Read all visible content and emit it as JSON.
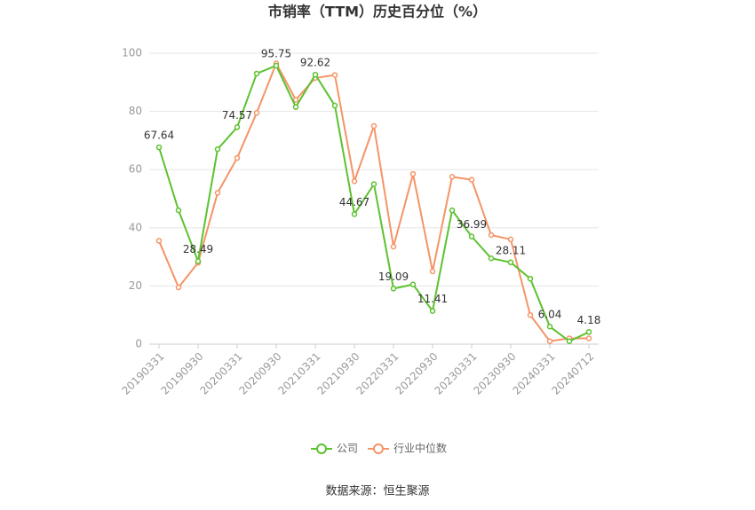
{
  "chart_data": {
    "type": "line",
    "title": "市销率（TTM）历史百分位（%）",
    "source": "数据来源：恒生聚源",
    "categories": [
      "20190331",
      null,
      "20190930",
      null,
      "20200331",
      null,
      "20200930",
      null,
      "20210331",
      null,
      "20210930",
      null,
      "20220331",
      null,
      "20220930",
      null,
      "20230331",
      null,
      "20230930",
      null,
      "20240331",
      null,
      "20240712"
    ],
    "series": [
      {
        "name": "公司",
        "color": "#5cc22f",
        "values": [
          67.64,
          46,
          28.49,
          67,
          74.57,
          93,
          95.75,
          81.5,
          92.62,
          82,
          44.67,
          55,
          19.09,
          20.5,
          11.41,
          46,
          36.99,
          29.5,
          28.11,
          22.5,
          6.04,
          1,
          4.18
        ],
        "value_labels": [
          "67.64",
          null,
          "28.49",
          null,
          "74.57",
          null,
          "95.75",
          null,
          "92.62",
          null,
          "44.67",
          null,
          "19.09",
          null,
          "11.41",
          null,
          "36.99",
          null,
          "28.11",
          null,
          "6.04",
          null,
          "4.18"
        ]
      },
      {
        "name": "行业中位数",
        "color": "#f59467",
        "values": [
          35.5,
          19.5,
          28,
          52,
          64,
          79.5,
          96.5,
          84,
          91.5,
          92.5,
          56,
          75,
          33.5,
          58.5,
          25,
          57.5,
          56.5,
          37.5,
          36,
          10,
          1,
          2,
          2
        ]
      }
    ],
    "ylim": [
      0,
      100
    ],
    "yticks": [
      0,
      20,
      40,
      60,
      80,
      100
    ],
    "grid": true,
    "legend": "bottom"
  }
}
